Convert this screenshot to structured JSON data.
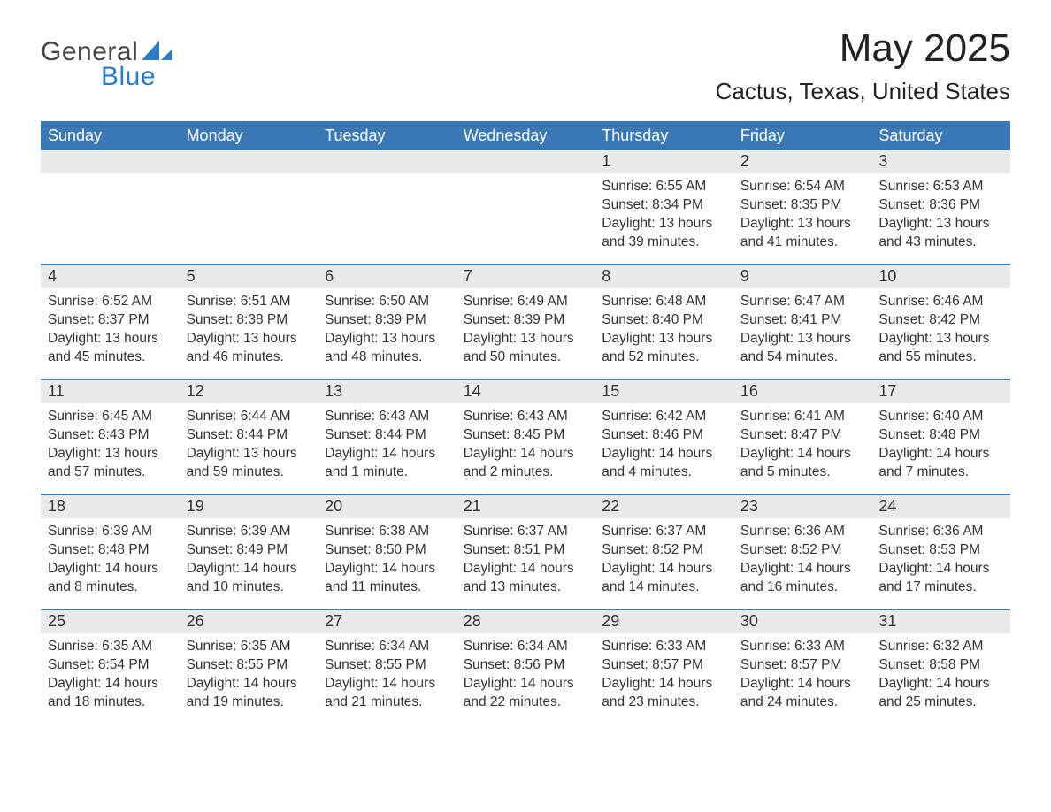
{
  "brand": {
    "general": "General",
    "blue": "Blue",
    "sail_color": "#2a7ec4"
  },
  "title": {
    "month": "May 2025",
    "location": "Cactus, Texas, United States"
  },
  "colors": {
    "header_bg": "#3b78b6",
    "header_text": "#ffffff",
    "daynum_bg": "#e9e9e9",
    "text": "#333333",
    "week_border": "#3b78b6",
    "page_bg": "#ffffff"
  },
  "weekdays": [
    "Sunday",
    "Monday",
    "Tuesday",
    "Wednesday",
    "Thursday",
    "Friday",
    "Saturday"
  ],
  "labels": {
    "sunrise": "Sunrise:",
    "sunset": "Sunset:",
    "daylight": "Daylight:"
  },
  "weeks": [
    [
      {
        "empty": true
      },
      {
        "empty": true
      },
      {
        "empty": true
      },
      {
        "empty": true
      },
      {
        "n": "1",
        "sunrise": "6:55 AM",
        "sunset": "8:34 PM",
        "daylight": "13 hours and 39 minutes."
      },
      {
        "n": "2",
        "sunrise": "6:54 AM",
        "sunset": "8:35 PM",
        "daylight": "13 hours and 41 minutes."
      },
      {
        "n": "3",
        "sunrise": "6:53 AM",
        "sunset": "8:36 PM",
        "daylight": "13 hours and 43 minutes."
      }
    ],
    [
      {
        "n": "4",
        "sunrise": "6:52 AM",
        "sunset": "8:37 PM",
        "daylight": "13 hours and 45 minutes."
      },
      {
        "n": "5",
        "sunrise": "6:51 AM",
        "sunset": "8:38 PM",
        "daylight": "13 hours and 46 minutes."
      },
      {
        "n": "6",
        "sunrise": "6:50 AM",
        "sunset": "8:39 PM",
        "daylight": "13 hours and 48 minutes."
      },
      {
        "n": "7",
        "sunrise": "6:49 AM",
        "sunset": "8:39 PM",
        "daylight": "13 hours and 50 minutes."
      },
      {
        "n": "8",
        "sunrise": "6:48 AM",
        "sunset": "8:40 PM",
        "daylight": "13 hours and 52 minutes."
      },
      {
        "n": "9",
        "sunrise": "6:47 AM",
        "sunset": "8:41 PM",
        "daylight": "13 hours and 54 minutes."
      },
      {
        "n": "10",
        "sunrise": "6:46 AM",
        "sunset": "8:42 PM",
        "daylight": "13 hours and 55 minutes."
      }
    ],
    [
      {
        "n": "11",
        "sunrise": "6:45 AM",
        "sunset": "8:43 PM",
        "daylight": "13 hours and 57 minutes."
      },
      {
        "n": "12",
        "sunrise": "6:44 AM",
        "sunset": "8:44 PM",
        "daylight": "13 hours and 59 minutes."
      },
      {
        "n": "13",
        "sunrise": "6:43 AM",
        "sunset": "8:44 PM",
        "daylight": "14 hours and 1 minute."
      },
      {
        "n": "14",
        "sunrise": "6:43 AM",
        "sunset": "8:45 PM",
        "daylight": "14 hours and 2 minutes."
      },
      {
        "n": "15",
        "sunrise": "6:42 AM",
        "sunset": "8:46 PM",
        "daylight": "14 hours and 4 minutes."
      },
      {
        "n": "16",
        "sunrise": "6:41 AM",
        "sunset": "8:47 PM",
        "daylight": "14 hours and 5 minutes."
      },
      {
        "n": "17",
        "sunrise": "6:40 AM",
        "sunset": "8:48 PM",
        "daylight": "14 hours and 7 minutes."
      }
    ],
    [
      {
        "n": "18",
        "sunrise": "6:39 AM",
        "sunset": "8:48 PM",
        "daylight": "14 hours and 8 minutes."
      },
      {
        "n": "19",
        "sunrise": "6:39 AM",
        "sunset": "8:49 PM",
        "daylight": "14 hours and 10 minutes."
      },
      {
        "n": "20",
        "sunrise": "6:38 AM",
        "sunset": "8:50 PM",
        "daylight": "14 hours and 11 minutes."
      },
      {
        "n": "21",
        "sunrise": "6:37 AM",
        "sunset": "8:51 PM",
        "daylight": "14 hours and 13 minutes."
      },
      {
        "n": "22",
        "sunrise": "6:37 AM",
        "sunset": "8:52 PM",
        "daylight": "14 hours and 14 minutes."
      },
      {
        "n": "23",
        "sunrise": "6:36 AM",
        "sunset": "8:52 PM",
        "daylight": "14 hours and 16 minutes."
      },
      {
        "n": "24",
        "sunrise": "6:36 AM",
        "sunset": "8:53 PM",
        "daylight": "14 hours and 17 minutes."
      }
    ],
    [
      {
        "n": "25",
        "sunrise": "6:35 AM",
        "sunset": "8:54 PM",
        "daylight": "14 hours and 18 minutes."
      },
      {
        "n": "26",
        "sunrise": "6:35 AM",
        "sunset": "8:55 PM",
        "daylight": "14 hours and 19 minutes."
      },
      {
        "n": "27",
        "sunrise": "6:34 AM",
        "sunset": "8:55 PM",
        "daylight": "14 hours and 21 minutes."
      },
      {
        "n": "28",
        "sunrise": "6:34 AM",
        "sunset": "8:56 PM",
        "daylight": "14 hours and 22 minutes."
      },
      {
        "n": "29",
        "sunrise": "6:33 AM",
        "sunset": "8:57 PM",
        "daylight": "14 hours and 23 minutes."
      },
      {
        "n": "30",
        "sunrise": "6:33 AM",
        "sunset": "8:57 PM",
        "daylight": "14 hours and 24 minutes."
      },
      {
        "n": "31",
        "sunrise": "6:32 AM",
        "sunset": "8:58 PM",
        "daylight": "14 hours and 25 minutes."
      }
    ]
  ]
}
